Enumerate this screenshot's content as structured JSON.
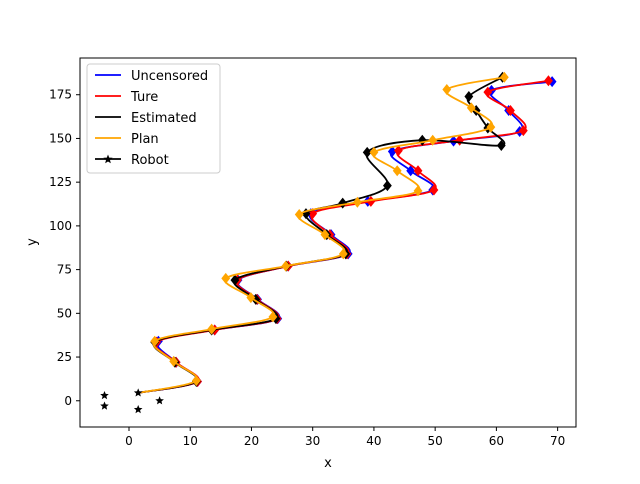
{
  "chart_data": {
    "type": "line",
    "title": "",
    "xlabel": "x",
    "ylabel": "y",
    "xlim": [
      -8,
      73
    ],
    "ylim": [
      -15,
      196
    ],
    "x_ticks": [
      0,
      10,
      20,
      30,
      40,
      50,
      60,
      70
    ],
    "y_ticks": [
      0,
      25,
      50,
      75,
      100,
      125,
      150,
      175
    ],
    "x_tick_labels": [
      "0",
      "10",
      "20",
      "30",
      "40",
      "50",
      "60",
      "70"
    ],
    "y_tick_labels": [
      "0",
      "25",
      "50",
      "75",
      "100",
      "125",
      "150",
      "175"
    ],
    "grid": false,
    "legend_position": "top-left",
    "series": [
      {
        "name": "Uncensored",
        "color": "#0000ff",
        "marker": "diamond",
        "waypoints": [
          [
            1.5,
            4.5
          ],
          [
            11.2,
            11
          ],
          [
            7.7,
            22
          ],
          [
            4.8,
            34
          ],
          [
            14,
            40.5
          ],
          [
            24.3,
            47
          ],
          [
            21,
            58
          ],
          [
            17.8,
            69
          ],
          [
            26,
            77
          ],
          [
            35.8,
            84
          ],
          [
            33,
            95
          ],
          [
            29.7,
            107
          ],
          [
            39,
            114
          ],
          [
            49.6,
            120.5
          ],
          [
            46,
            131.5
          ],
          [
            43,
            142.5
          ],
          [
            53,
            148.5
          ],
          [
            63.8,
            154
          ],
          [
            62,
            166
          ],
          [
            59.2,
            177.5
          ],
          [
            69.1,
            182.5
          ]
        ]
      },
      {
        "name": "Ture",
        "color": "#ff0000",
        "marker": "diamond",
        "waypoints": [
          [
            1.5,
            4.5
          ],
          [
            11.2,
            11
          ],
          [
            7.7,
            22
          ],
          [
            4.5,
            33.5
          ],
          [
            14,
            40.5
          ],
          [
            24.2,
            47
          ],
          [
            20.9,
            58
          ],
          [
            17.7,
            69
          ],
          [
            26,
            77
          ],
          [
            35.6,
            84
          ],
          [
            32.8,
            95
          ],
          [
            30,
            107
          ],
          [
            39.5,
            114
          ],
          [
            49.8,
            120.5
          ],
          [
            47.2,
            131.5
          ],
          [
            44,
            143
          ],
          [
            54,
            149
          ],
          [
            64.4,
            154.5
          ],
          [
            62.3,
            166
          ],
          [
            58.6,
            176.5
          ],
          [
            68.5,
            183
          ]
        ]
      },
      {
        "name": "Estimated",
        "color": "#000000",
        "marker": "diamond",
        "waypoints": [
          [
            1.5,
            4.5
          ],
          [
            11,
            11
          ],
          [
            7.5,
            22
          ],
          [
            4.2,
            33.5
          ],
          [
            13.5,
            40.5
          ],
          [
            24,
            47
          ],
          [
            20.7,
            58
          ],
          [
            17.3,
            69
          ],
          [
            25.7,
            77
          ],
          [
            35.4,
            84
          ],
          [
            32.3,
            95
          ],
          [
            28.9,
            107
          ],
          [
            34.9,
            113
          ],
          [
            42.2,
            123
          ],
          [
            38.9,
            142
          ],
          [
            47.9,
            149
          ],
          [
            60.8,
            146
          ],
          [
            58.6,
            156
          ],
          [
            56.7,
            166
          ],
          [
            55.5,
            174
          ],
          [
            61,
            185
          ]
        ]
      },
      {
        "name": "Plan",
        "color": "#ffa500",
        "marker": "diamond",
        "waypoints": [
          [
            1.5,
            4.5
          ],
          [
            11,
            11.5
          ],
          [
            7.3,
            22.5
          ],
          [
            4.2,
            34
          ],
          [
            13.5,
            41
          ],
          [
            23.5,
            48
          ],
          [
            19.9,
            59
          ],
          [
            15.8,
            70
          ],
          [
            25.6,
            77
          ],
          [
            35,
            84
          ],
          [
            32,
            95
          ],
          [
            27.8,
            106.5
          ],
          [
            37.3,
            113.5
          ],
          [
            47.2,
            120
          ],
          [
            43.8,
            131.5
          ],
          [
            40,
            142
          ],
          [
            49.6,
            149
          ],
          [
            59.1,
            156.5
          ],
          [
            55.9,
            167.5
          ],
          [
            51.9,
            178
          ],
          [
            61.3,
            185
          ]
        ]
      },
      {
        "name": "Robot",
        "color": "#000000",
        "marker": "star",
        "points": [
          [
            -4,
            3
          ],
          [
            -4,
            -3
          ],
          [
            1.5,
            4.5
          ],
          [
            1.5,
            -5
          ],
          [
            5,
            0
          ]
        ]
      }
    ]
  },
  "legend": {
    "entries": [
      "Uncensored",
      "Ture",
      "Estimated",
      "Plan",
      "Robot"
    ]
  }
}
